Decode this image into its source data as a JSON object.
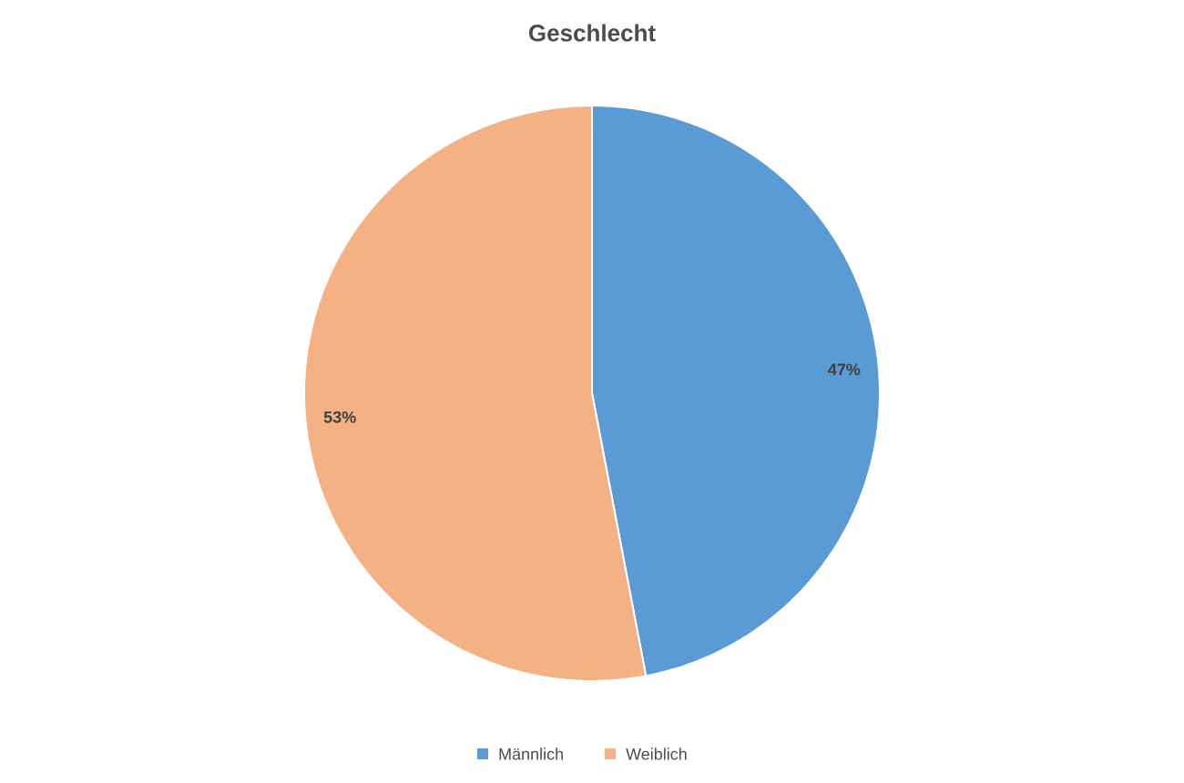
{
  "chart_data": {
    "type": "pie",
    "title": "Geschlecht",
    "categories": [
      "Männlich",
      "Weiblich"
    ],
    "values": [
      47,
      53
    ],
    "colors": [
      "#5b9bd5",
      "#f4b183"
    ],
    "value_labels": [
      "47%",
      "53%"
    ],
    "legend": "bottom"
  }
}
